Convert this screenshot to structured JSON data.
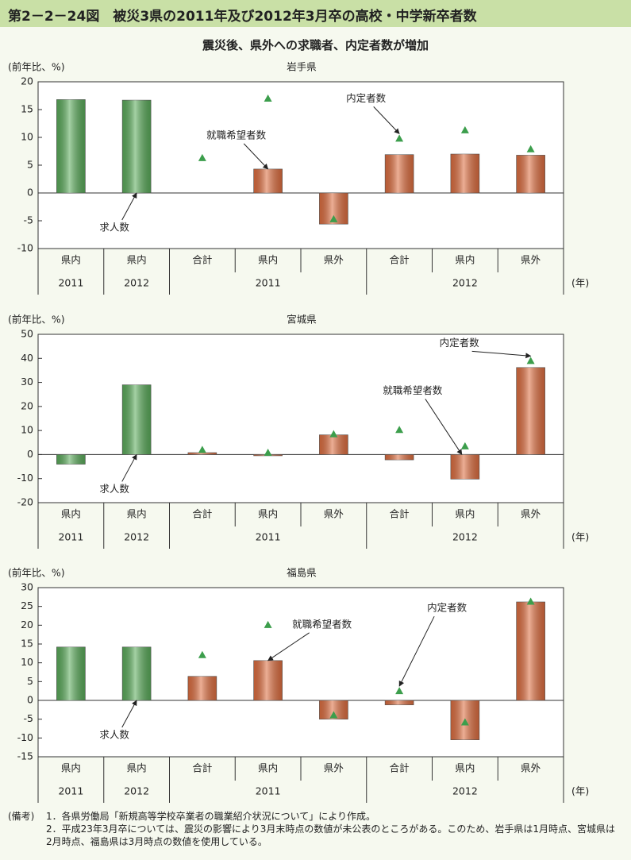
{
  "header": {
    "title": "第2－2－24図　被災3県の2011年及び2012年3月卒の高校・中学新卒者数",
    "subtitle": "震災後、県外への求職者、内定者数が増加"
  },
  "chart_data": [
    {
      "type": "bar",
      "title": "岩手県",
      "ylabel": "(前年比、%)",
      "xlabel": "(年)",
      "categories": [
        "県内",
        "県内",
        "合計",
        "県内",
        "県外",
        "合計",
        "県内",
        "県外"
      ],
      "years": [
        "2011",
        "2012",
        "2011",
        "2011",
        "2011",
        "2012",
        "2012",
        "2012"
      ],
      "ylim": [
        -10,
        20
      ],
      "yticks": [
        -10,
        -5,
        0,
        5,
        10,
        15,
        20
      ],
      "series": [
        {
          "name": "求人数",
          "color": "#5aab5a",
          "values": [
            16.8,
            16.7,
            null,
            null,
            null,
            null,
            null,
            null
          ]
        },
        {
          "name": "就職希望者数",
          "color": "#dd6d3f",
          "values": [
            null,
            null,
            null,
            4.3,
            -5.6,
            6.9,
            7.0,
            6.8
          ]
        },
        {
          "name": "内定者数",
          "color": "#3c9e4c",
          "marker": "triangle",
          "values": [
            null,
            null,
            6.3,
            17.0,
            -4.7,
            9.8,
            11.3,
            7.9
          ]
        }
      ]
    },
    {
      "type": "bar",
      "title": "宮城県",
      "ylabel": "(前年比、%)",
      "xlabel": "(年)",
      "categories": [
        "県内",
        "県内",
        "合計",
        "県内",
        "県外",
        "合計",
        "県内",
        "県外"
      ],
      "years": [
        "2011",
        "2012",
        "2011",
        "2011",
        "2011",
        "2012",
        "2012",
        "2012"
      ],
      "ylim": [
        -20,
        50
      ],
      "yticks": [
        -20,
        -10,
        0,
        10,
        20,
        30,
        40,
        50
      ],
      "series": [
        {
          "name": "求人数",
          "color": "#5aab5a",
          "values": [
            -4.0,
            29.0,
            null,
            null,
            null,
            null,
            null,
            null
          ]
        },
        {
          "name": "就職希望者数",
          "color": "#dd6d3f",
          "values": [
            null,
            null,
            0.8,
            -0.5,
            8.2,
            -2.2,
            -10.2,
            36.2
          ]
        },
        {
          "name": "内定者数",
          "color": "#3c9e4c",
          "marker": "triangle",
          "values": [
            null,
            null,
            2.0,
            0.8,
            8.5,
            10.3,
            3.5,
            39.0
          ]
        }
      ]
    },
    {
      "type": "bar",
      "title": "福島県",
      "ylabel": "(前年比、%)",
      "xlabel": "(年)",
      "categories": [
        "県内",
        "県内",
        "合計",
        "県内",
        "県外",
        "合計",
        "県内",
        "県外"
      ],
      "years": [
        "2011",
        "2012",
        "2011",
        "2011",
        "2011",
        "2012",
        "2012",
        "2012"
      ],
      "ylim": [
        -15,
        30
      ],
      "yticks": [
        -15,
        -10,
        -5,
        0,
        5,
        10,
        15,
        20,
        25,
        30
      ],
      "series": [
        {
          "name": "求人数",
          "color": "#5aab5a",
          "values": [
            14.2,
            14.2,
            null,
            null,
            null,
            null,
            null,
            null
          ]
        },
        {
          "name": "就職希望者数",
          "color": "#dd6d3f",
          "values": [
            null,
            null,
            6.4,
            10.6,
            -5.0,
            -1.2,
            -10.5,
            26.2
          ]
        },
        {
          "name": "内定者数",
          "color": "#3c9e4c",
          "marker": "triangle",
          "values": [
            null,
            null,
            12.1,
            20.1,
            -3.9,
            2.5,
            -5.8,
            26.3
          ]
        }
      ]
    }
  ],
  "notes": {
    "label": "(備考)",
    "items": [
      "1．各県労働局「新規高等学校卒業者の職業紹介状況について」により作成。",
      "2．平成23年3月卒については、震災の影響により3月末時点の数値が未公表のところがある。このため、岩手県は1月時点、宮城県は2月時点、福島県は3月時点の数値を使用している。"
    ]
  }
}
